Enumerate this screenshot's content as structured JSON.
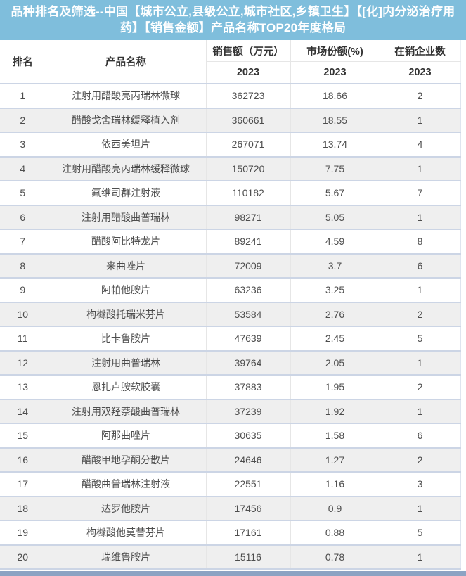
{
  "header": {
    "title": "品种排名及筛选--中国【城市公立,县级公立,城市社区,乡镇卫生】【[化]内分泌治疗用药】【销售金额】产品名称TOP20年度格局"
  },
  "chart_data": {
    "type": "table",
    "title": "品种排名及筛选--中国【城市公立,县级公立,城市社区,乡镇卫生】【[化]内分泌治疗用药】【销售金额】产品名称TOP20年度格局",
    "columns": [
      "排名",
      "产品名称",
      "销售额（万元）",
      "市场份额(%)",
      "在销企业数"
    ],
    "year_subheaders": [
      "2023",
      "2023",
      "2023"
    ],
    "rows": [
      [
        "1",
        "注射用醋酸亮丙瑞林微球",
        "362723",
        "18.66",
        "2"
      ],
      [
        "2",
        "醋酸戈舍瑞林缓释植入剂",
        "360661",
        "18.55",
        "1"
      ],
      [
        "3",
        "依西美坦片",
        "267071",
        "13.74",
        "4"
      ],
      [
        "4",
        "注射用醋酸亮丙瑞林缓释微球",
        "150720",
        "7.75",
        "1"
      ],
      [
        "5",
        "氟维司群注射液",
        "110182",
        "5.67",
        "7"
      ],
      [
        "6",
        "注射用醋酸曲普瑞林",
        "98271",
        "5.05",
        "1"
      ],
      [
        "7",
        "醋酸阿比特龙片",
        "89241",
        "4.59",
        "8"
      ],
      [
        "8",
        "来曲唑片",
        "72009",
        "3.7",
        "6"
      ],
      [
        "9",
        "阿帕他胺片",
        "63236",
        "3.25",
        "1"
      ],
      [
        "10",
        "枸橼酸托瑞米芬片",
        "53584",
        "2.76",
        "2"
      ],
      [
        "11",
        "比卡鲁胺片",
        "47639",
        "2.45",
        "5"
      ],
      [
        "12",
        "注射用曲普瑞林",
        "39764",
        "2.05",
        "1"
      ],
      [
        "13",
        "恩扎卢胺软胶囊",
        "37883",
        "1.95",
        "2"
      ],
      [
        "14",
        "注射用双羟萘酸曲普瑞林",
        "37239",
        "1.92",
        "1"
      ],
      [
        "15",
        "阿那曲唑片",
        "30635",
        "1.58",
        "6"
      ],
      [
        "16",
        "醋酸甲地孕酮分散片",
        "24646",
        "1.27",
        "2"
      ],
      [
        "17",
        "醋酸曲普瑞林注射液",
        "22551",
        "1.16",
        "3"
      ],
      [
        "18",
        "达罗他胺片",
        "17456",
        "0.9",
        "1"
      ],
      [
        "19",
        "枸橼酸他莫昔芬片",
        "17161",
        "0.88",
        "5"
      ],
      [
        "20",
        "瑞维鲁胺片",
        "15116",
        "0.78",
        "1"
      ]
    ]
  },
  "colors": {
    "title_bg": "#7FBEDC",
    "title_text": "#FFFFFF",
    "row_alt_bg": "#EFEFEF",
    "row_divider": "#CCD5E5",
    "column_divider": "#E6E6E6",
    "bottom_bar": "#8CA3C3",
    "body_text": "#4D4D4D",
    "header_text": "#333333"
  }
}
